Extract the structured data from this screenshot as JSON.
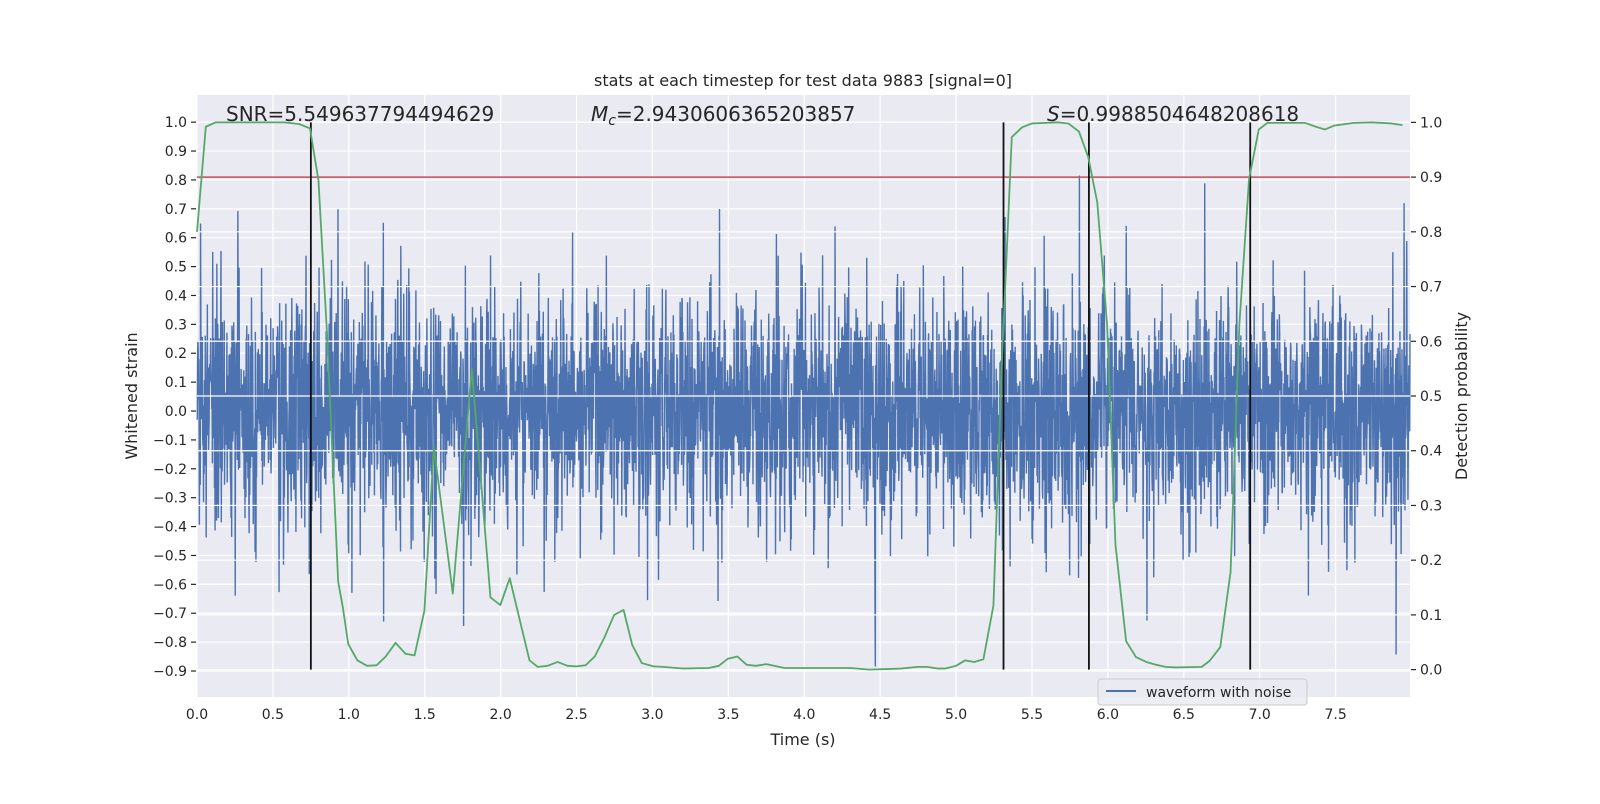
{
  "chart_data": {
    "type": "line",
    "title": "stats at each timestep for test data 9883 [signal=0]",
    "xlabel": "Time (s)",
    "ylabel_left": "Whitened strain",
    "ylabel_right": "Detection probability",
    "xlim": [
      0,
      7.99
    ],
    "ylim_left": [
      -0.99,
      1.094
    ],
    "ylim_right": [
      -0.05,
      1.05
    ],
    "x_ticks": [
      "0.0",
      "0.5",
      "1.0",
      "1.5",
      "2.0",
      "2.5",
      "3.0",
      "3.5",
      "4.0",
      "4.5",
      "5.0",
      "5.5",
      "6.0",
      "6.5",
      "7.0",
      "7.5"
    ],
    "x_tick_values": [
      0,
      0.5,
      1,
      1.5,
      2,
      2.5,
      3,
      3.5,
      4,
      4.5,
      5,
      5.5,
      6,
      6.5,
      7,
      7.5
    ],
    "y_left_ticks": [
      "1.0",
      "0.9",
      "0.8",
      "0.7",
      "0.6",
      "0.5",
      "0.4",
      "0.3",
      "0.2",
      "0.1",
      "0.0",
      "−0.1",
      "−0.2",
      "−0.3",
      "−0.4",
      "−0.5",
      "−0.6",
      "−0.7",
      "−0.8",
      "−0.9"
    ],
    "y_left_tick_values": [
      1,
      0.9,
      0.8,
      0.7,
      0.6,
      0.5,
      0.4,
      0.3,
      0.2,
      0.1,
      0,
      -0.1,
      -0.2,
      -0.3,
      -0.4,
      -0.5,
      -0.6,
      -0.7,
      -0.8,
      -0.9
    ],
    "y_right_ticks": [
      "1.0",
      "0.9",
      "0.8",
      "0.7",
      "0.6",
      "0.5",
      "0.4",
      "0.3",
      "0.2",
      "0.1",
      "0.0"
    ],
    "y_right_tick_values": [
      1,
      0.9,
      0.8,
      0.7,
      0.6,
      0.5,
      0.4,
      0.3,
      0.2,
      0.1,
      0
    ],
    "grid": true,
    "legend": {
      "placement": "lower-right",
      "entries": [
        "waveform with noise"
      ]
    },
    "annotations": {
      "snr": "SNR=5.549637794494629",
      "mc_symbol": "M",
      "mc_sub": "c",
      "mc_value": "=2.9430606365203857",
      "s_symbol": "S",
      "s_value": "=0.9988504648208618"
    },
    "waveform": {
      "name": "waveform with noise",
      "axis": "left",
      "color": "#4c72b0",
      "n_samples": 4096,
      "noise_std": 0.16,
      "approx_range": [
        -0.9,
        0.99
      ]
    },
    "threshold": {
      "axis": "right",
      "value": 0.9,
      "color": "#c44e52"
    },
    "vlines": {
      "axis": "right",
      "x": [
        0.75,
        5.3125,
        5.875,
        6.9375
      ],
      "ymin": 0,
      "ymax": 1,
      "color": "#111111"
    },
    "probability": {
      "axis": "right",
      "color": "#55a868",
      "points": [
        [
          0,
          0.8
        ],
        [
          0.058,
          0.992
        ],
        [
          0.123,
          1.0
        ],
        [
          0.575,
          1.0
        ],
        [
          0.672,
          0.997
        ],
        [
          0.744,
          0.989
        ],
        [
          0.8,
          0.894
        ],
        [
          0.856,
          0.616
        ],
        [
          0.93,
          0.16
        ],
        [
          0.96,
          0.115
        ],
        [
          0.996,
          0.047
        ],
        [
          1.056,
          0.017
        ],
        [
          1.12,
          0.007
        ],
        [
          1.183,
          0.008
        ],
        [
          1.243,
          0.024
        ],
        [
          1.308,
          0.049
        ],
        [
          1.373,
          0.029
        ],
        [
          1.433,
          0.026
        ],
        [
          1.498,
          0.108
        ],
        [
          1.56,
          0.407
        ],
        [
          1.685,
          0.139
        ],
        [
          1.81,
          0.55
        ],
        [
          1.933,
          0.132
        ],
        [
          1.998,
          0.118
        ],
        [
          2.06,
          0.167
        ],
        [
          2.19,
          0.017
        ],
        [
          2.245,
          0.005
        ],
        [
          2.31,
          0.007
        ],
        [
          2.375,
          0.014
        ],
        [
          2.44,
          0.007
        ],
        [
          2.5,
          0.006
        ],
        [
          2.56,
          0.008
        ],
        [
          2.62,
          0.024
        ],
        [
          2.684,
          0.059
        ],
        [
          2.748,
          0.1
        ],
        [
          2.81,
          0.109
        ],
        [
          2.867,
          0.045
        ],
        [
          2.93,
          0.012
        ],
        [
          3.006,
          0.006
        ],
        [
          3.07,
          0.005
        ],
        [
          3.2,
          0.002
        ],
        [
          3.37,
          0.003
        ],
        [
          3.437,
          0.007
        ],
        [
          3.497,
          0.02
        ],
        [
          3.56,
          0.024
        ],
        [
          3.62,
          0.009
        ],
        [
          3.68,
          0.007
        ],
        [
          3.75,
          0.01
        ],
        [
          3.87,
          0.003
        ],
        [
          4.08,
          0.003
        ],
        [
          4.3,
          0.003
        ],
        [
          4.43,
          0.0
        ],
        [
          4.64,
          0.002
        ],
        [
          4.75,
          0.005
        ],
        [
          4.81,
          0.005
        ],
        [
          4.877,
          0.002
        ],
        [
          4.93,
          0.002
        ],
        [
          5.0,
          0.007
        ],
        [
          5.06,
          0.017
        ],
        [
          5.12,
          0.014
        ],
        [
          5.18,
          0.019
        ],
        [
          5.246,
          0.117
        ],
        [
          5.3,
          0.55
        ],
        [
          5.367,
          0.973
        ],
        [
          5.435,
          0.991
        ],
        [
          5.5,
          0.998
        ],
        [
          5.67,
          1.0
        ],
        [
          5.74,
          0.998
        ],
        [
          5.81,
          0.983
        ],
        [
          5.87,
          0.937
        ],
        [
          5.93,
          0.854
        ],
        [
          5.995,
          0.63
        ],
        [
          6.05,
          0.228
        ],
        [
          6.12,
          0.052
        ],
        [
          6.185,
          0.023
        ],
        [
          6.253,
          0.014
        ],
        [
          6.317,
          0.009
        ],
        [
          6.38,
          0.005
        ],
        [
          6.446,
          0.004
        ],
        [
          6.618,
          0.005
        ],
        [
          6.67,
          0.016
        ],
        [
          6.74,
          0.041
        ],
        [
          6.808,
          0.178
        ],
        [
          6.866,
          0.63
        ],
        [
          6.93,
          0.897
        ],
        [
          6.994,
          0.987
        ],
        [
          7.05,
          0.999
        ],
        [
          7.3,
          0.999
        ],
        [
          7.37,
          0.992
        ],
        [
          7.43,
          0.987
        ],
        [
          7.49,
          0.994
        ],
        [
          7.62,
          0.999
        ],
        [
          7.74,
          1.0
        ],
        [
          7.87,
          0.998
        ],
        [
          7.94,
          0.995
        ]
      ]
    },
    "colors": {
      "background": "#eaeaf2",
      "grid": "#ffffff",
      "text": "#262626"
    }
  }
}
